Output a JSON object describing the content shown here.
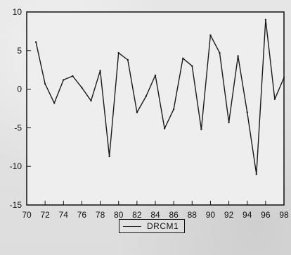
{
  "colors": {
    "background": "#e7e7e7",
    "line": "#1a1a1a",
    "axis": "#111111"
  },
  "chart_data": {
    "type": "line",
    "title": "",
    "xlabel": "",
    "ylabel": "",
    "xlim": [
      70,
      98
    ],
    "ylim": [
      -15,
      10
    ],
    "grid": false,
    "legend_position": "bottom-center",
    "x_ticks": [
      70,
      72,
      74,
      76,
      78,
      80,
      82,
      84,
      86,
      88,
      90,
      92,
      94,
      96,
      98
    ],
    "y_ticks": [
      10,
      5,
      0,
      -5,
      -10,
      -15
    ],
    "series": [
      {
        "name": "DRCM1",
        "x": [
          71,
          72,
          73,
          74,
          75,
          76,
          77,
          78,
          79,
          80,
          81,
          82,
          83,
          84,
          85,
          86,
          87,
          88,
          89,
          90,
          91,
          92,
          93,
          94,
          95,
          96,
          97,
          98
        ],
        "values": [
          6.1,
          0.7,
          -1.8,
          1.2,
          1.7,
          0.2,
          -1.5,
          2.4,
          -8.7,
          4.7,
          3.8,
          -3.0,
          -0.9,
          1.8,
          -5.1,
          -2.6,
          4.0,
          3.0,
          -5.2,
          7.0,
          4.7,
          -4.3,
          4.3,
          -3.0,
          -11.0,
          9.0,
          -1.3,
          1.5
        ]
      }
    ]
  }
}
